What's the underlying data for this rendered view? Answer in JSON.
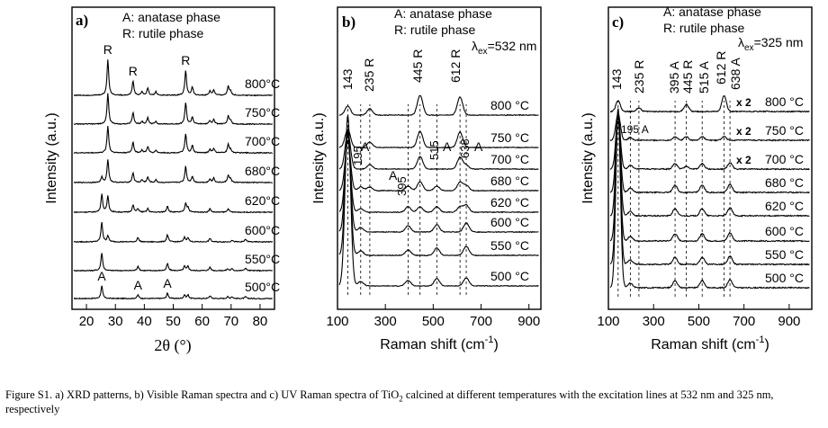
{
  "chart_data": [
    {
      "type": "line",
      "panel": "a)",
      "title": "XRD patterns",
      "legend": [
        "A: anatase phase",
        "R: rutile phase"
      ],
      "xlabel": "2θ (°)",
      "ylabel": "Intensity (a.u.)",
      "xlim": [
        15,
        85
      ],
      "xticks": [
        20,
        30,
        40,
        50,
        60,
        70,
        80
      ],
      "series": [
        {
          "name": "500°C",
          "peaks": [
            {
              "x": 25.3,
              "h": 14
            },
            {
              "x": 37.8,
              "h": 4
            },
            {
              "x": 48.0,
              "h": 6
            },
            {
              "x": 53.9,
              "h": 4
            },
            {
              "x": 55.1,
              "h": 4
            },
            {
              "x": 62.7,
              "h": 3
            },
            {
              "x": 68.8,
              "h": 2
            },
            {
              "x": 70.3,
              "h": 2
            },
            {
              "x": 75.0,
              "h": 2
            }
          ]
        },
        {
          "name": "550°C",
          "peaks": [
            {
              "x": 25.3,
              "h": 20
            },
            {
              "x": 37.8,
              "h": 5
            },
            {
              "x": 48.0,
              "h": 8
            },
            {
              "x": 53.9,
              "h": 5
            },
            {
              "x": 55.1,
              "h": 5
            },
            {
              "x": 62.7,
              "h": 4
            },
            {
              "x": 68.8,
              "h": 2
            },
            {
              "x": 70.3,
              "h": 2
            },
            {
              "x": 75.0,
              "h": 3
            }
          ]
        },
        {
          "name": "600°C",
          "peaks": [
            {
              "x": 25.3,
              "h": 22
            },
            {
              "x": 27.4,
              "h": 7
            },
            {
              "x": 37.8,
              "h": 5
            },
            {
              "x": 48.0,
              "h": 8
            },
            {
              "x": 53.9,
              "h": 5
            },
            {
              "x": 55.1,
              "h": 5
            },
            {
              "x": 62.7,
              "h": 4
            },
            {
              "x": 70.3,
              "h": 2
            },
            {
              "x": 75.0,
              "h": 3
            }
          ]
        },
        {
          "name": "620°C",
          "peaks": [
            {
              "x": 25.3,
              "h": 20
            },
            {
              "x": 27.4,
              "h": 18
            },
            {
              "x": 36.1,
              "h": 8
            },
            {
              "x": 37.8,
              "h": 4
            },
            {
              "x": 41.2,
              "h": 4
            },
            {
              "x": 48.0,
              "h": 7
            },
            {
              "x": 54.3,
              "h": 10
            },
            {
              "x": 55.1,
              "h": 5
            },
            {
              "x": 62.7,
              "h": 4
            },
            {
              "x": 69.0,
              "h": 4
            }
          ]
        },
        {
          "name": "680°C",
          "peaks": [
            {
              "x": 25.3,
              "h": 6
            },
            {
              "x": 27.4,
              "h": 26
            },
            {
              "x": 36.1,
              "h": 11
            },
            {
              "x": 39.2,
              "h": 3
            },
            {
              "x": 41.2,
              "h": 6
            },
            {
              "x": 44.0,
              "h": 3
            },
            {
              "x": 54.3,
              "h": 18
            },
            {
              "x": 56.6,
              "h": 7
            },
            {
              "x": 62.7,
              "h": 4
            },
            {
              "x": 64.0,
              "h": 5
            },
            {
              "x": 69.0,
              "h": 8
            },
            {
              "x": 69.8,
              "h": 4
            }
          ]
        },
        {
          "name": "700°C",
          "peaks": [
            {
              "x": 27.4,
              "h": 30
            },
            {
              "x": 36.1,
              "h": 12
            },
            {
              "x": 39.2,
              "h": 3
            },
            {
              "x": 41.2,
              "h": 7
            },
            {
              "x": 44.0,
              "h": 3
            },
            {
              "x": 54.3,
              "h": 21
            },
            {
              "x": 56.6,
              "h": 8
            },
            {
              "x": 62.7,
              "h": 4
            },
            {
              "x": 64.0,
              "h": 5
            },
            {
              "x": 69.0,
              "h": 9
            },
            {
              "x": 69.8,
              "h": 4
            }
          ]
        },
        {
          "name": "750°C",
          "peaks": [
            {
              "x": 27.4,
              "h": 34
            },
            {
              "x": 36.1,
              "h": 13
            },
            {
              "x": 39.2,
              "h": 3
            },
            {
              "x": 41.2,
              "h": 7
            },
            {
              "x": 44.0,
              "h": 3
            },
            {
              "x": 54.3,
              "h": 24
            },
            {
              "x": 56.6,
              "h": 8
            },
            {
              "x": 62.7,
              "h": 4
            },
            {
              "x": 64.0,
              "h": 5
            },
            {
              "x": 69.0,
              "h": 9
            },
            {
              "x": 69.8,
              "h": 4
            }
          ]
        },
        {
          "name": "800°C",
          "peaks": [
            {
              "x": 27.4,
              "h": 40
            },
            {
              "x": 36.1,
              "h": 16
            },
            {
              "x": 39.2,
              "h": 4
            },
            {
              "x": 41.2,
              "h": 8
            },
            {
              "x": 44.0,
              "h": 4
            },
            {
              "x": 54.3,
              "h": 28
            },
            {
              "x": 56.6,
              "h": 9
            },
            {
              "x": 62.7,
              "h": 5
            },
            {
              "x": 64.0,
              "h": 6
            },
            {
              "x": 69.0,
              "h": 10
            },
            {
              "x": 69.8,
              "h": 5
            }
          ]
        }
      ],
      "annotations": [
        {
          "text": "R",
          "x": 27.4,
          "series": "800°C"
        },
        {
          "text": "R",
          "x": 36.1,
          "series": "800°C"
        },
        {
          "text": "R",
          "x": 54.3,
          "series": "800°C"
        },
        {
          "text": "A",
          "x": 25.3,
          "series": "500°C"
        },
        {
          "text": "A",
          "x": 37.8,
          "series": "500°C"
        },
        {
          "text": "A",
          "x": 48.0,
          "series": "500°C"
        }
      ]
    },
    {
      "type": "line",
      "panel": "b)",
      "title": "Visible Raman spectra",
      "legend": [
        "A: anatase phase",
        "R: rutile phase"
      ],
      "excitation_prefix": "λ",
      "excitation_sub": "ex",
      "excitation_value": "=532 nm",
      "xlabel_main": "Raman shift (cm",
      "xlabel_sup": "-1",
      "xlabel_end": ")",
      "ylabel": "Intensity (a.u.)",
      "xlim": [
        100,
        950
      ],
      "xticks": [
        100,
        300,
        500,
        700,
        900
      ],
      "series": [
        {
          "name": "500 °C",
          "peaks": [
            {
              "x": 143,
              "h": 190
            },
            {
              "x": 197,
              "h": 5
            },
            {
              "x": 395,
              "h": 6
            },
            {
              "x": 515,
              "h": 8
            },
            {
              "x": 638,
              "h": 9
            }
          ]
        },
        {
          "name": "550 °C",
          "peaks": [
            {
              "x": 143,
              "h": 140
            },
            {
              "x": 197,
              "h": 5
            },
            {
              "x": 395,
              "h": 6
            },
            {
              "x": 515,
              "h": 8
            },
            {
              "x": 638,
              "h": 10
            }
          ]
        },
        {
          "name": "600 °C",
          "peaks": [
            {
              "x": 143,
              "h": 110
            },
            {
              "x": 197,
              "h": 5
            },
            {
              "x": 395,
              "h": 7
            },
            {
              "x": 515,
              "h": 8
            },
            {
              "x": 638,
              "h": 10
            }
          ]
        },
        {
          "name": "620 °C",
          "peaks": [
            {
              "x": 143,
              "h": 80
            },
            {
              "x": 197,
              "h": 4
            },
            {
              "x": 395,
              "h": 6
            },
            {
              "x": 445,
              "h": 6
            },
            {
              "x": 515,
              "h": 6
            },
            {
              "x": 612,
              "h": 6
            },
            {
              "x": 638,
              "h": 8
            }
          ]
        },
        {
          "name": "680 °C",
          "peaks": [
            {
              "x": 143,
              "h": 55
            },
            {
              "x": 197,
              "h": 4
            },
            {
              "x": 235,
              "h": 4
            },
            {
              "x": 395,
              "h": 5
            },
            {
              "x": 445,
              "h": 10
            },
            {
              "x": 515,
              "h": 5
            },
            {
              "x": 612,
              "h": 9
            },
            {
              "x": 638,
              "h": 6
            }
          ]
        },
        {
          "name": "700 °C",
          "peaks": [
            {
              "x": 143,
              "h": 40
            },
            {
              "x": 235,
              "h": 5
            },
            {
              "x": 445,
              "h": 14
            },
            {
              "x": 612,
              "h": 13
            },
            {
              "x": 638,
              "h": 4
            }
          ]
        },
        {
          "name": "750 °C",
          "peaks": [
            {
              "x": 143,
              "h": 20
            },
            {
              "x": 235,
              "h": 6
            },
            {
              "x": 445,
              "h": 18
            },
            {
              "x": 612,
              "h": 17
            }
          ]
        },
        {
          "name": "800 °C",
          "peaks": [
            {
              "x": 143,
              "h": 10
            },
            {
              "x": 235,
              "h": 7
            },
            {
              "x": 445,
              "h": 22
            },
            {
              "x": 612,
              "h": 20
            }
          ]
        }
      ],
      "peak_labels": [
        "143",
        "235 R",
        "445 R",
        "612 R",
        "195",
        "A",
        "395",
        "A",
        "515",
        "A",
        "638",
        "A"
      ],
      "reference_lines": [
        143,
        197,
        235,
        395,
        445,
        515,
        612,
        638
      ]
    },
    {
      "type": "line",
      "panel": "c)",
      "title": "UV Raman spectra",
      "legend": [
        "A: anatase phase",
        "R: rutile phase"
      ],
      "excitation_prefix": "λ",
      "excitation_sub": "ex",
      "excitation_value": "=325 nm",
      "xlabel_main": "Raman shift (cm",
      "xlabel_sup": "-1",
      "xlabel_end": ")",
      "ylabel": "Intensity (a.u.)",
      "xlim": [
        100,
        1000
      ],
      "xticks": [
        100,
        300,
        500,
        700,
        900
      ],
      "series": [
        {
          "name": "500 °C",
          "peaks": [
            {
              "x": 143,
              "h": 200
            },
            {
              "x": 197,
              "h": 5
            },
            {
              "x": 395,
              "h": 8
            },
            {
              "x": 515,
              "h": 8
            },
            {
              "x": 638,
              "h": 9
            }
          ]
        },
        {
          "name": "550 °C",
          "peaks": [
            {
              "x": 143,
              "h": 170
            },
            {
              "x": 197,
              "h": 5
            },
            {
              "x": 395,
              "h": 8
            },
            {
              "x": 515,
              "h": 8
            },
            {
              "x": 638,
              "h": 9
            }
          ]
        },
        {
          "name": "600 °C",
          "peaks": [
            {
              "x": 143,
              "h": 140
            },
            {
              "x": 197,
              "h": 5
            },
            {
              "x": 395,
              "h": 8
            },
            {
              "x": 515,
              "h": 8
            },
            {
              "x": 638,
              "h": 9
            }
          ]
        },
        {
          "name": "620 °C",
          "peaks": [
            {
              "x": 143,
              "h": 115
            },
            {
              "x": 197,
              "h": 5
            },
            {
              "x": 395,
              "h": 8
            },
            {
              "x": 515,
              "h": 8
            },
            {
              "x": 638,
              "h": 9
            }
          ]
        },
        {
          "name": "680 °C",
          "peaks": [
            {
              "x": 143,
              "h": 90
            },
            {
              "x": 197,
              "h": 5
            },
            {
              "x": 395,
              "h": 8
            },
            {
              "x": 515,
              "h": 8
            },
            {
              "x": 638,
              "h": 9
            }
          ]
        },
        {
          "name": "700 °C",
          "peaks": [
            {
              "x": 143,
              "h": 60
            },
            {
              "x": 197,
              "h": 4
            },
            {
              "x": 395,
              "h": 6
            },
            {
              "x": 445,
              "h": 3
            },
            {
              "x": 515,
              "h": 6
            },
            {
              "x": 638,
              "h": 7
            }
          ]
        },
        {
          "name": "750 °C",
          "peaks": [
            {
              "x": 143,
              "h": 30
            },
            {
              "x": 197,
              "h": 3
            },
            {
              "x": 395,
              "h": 4
            },
            {
              "x": 445,
              "h": 4
            },
            {
              "x": 515,
              "h": 4
            },
            {
              "x": 612,
              "h": 4
            }
          ]
        },
        {
          "name": "800 °C",
          "peaks": [
            {
              "x": 143,
              "h": 12
            },
            {
              "x": 235,
              "h": 4
            },
            {
              "x": 445,
              "h": 8
            },
            {
              "x": 612,
              "h": 18
            }
          ]
        }
      ],
      "multipliers": [
        {
          "series": "800 °C",
          "text": "x 2"
        },
        {
          "series": "750 °C",
          "text": "x 2"
        },
        {
          "series": "700 °C",
          "text": "x 2"
        }
      ],
      "peak_labels": [
        "143",
        "235 R",
        "395 A",
        "445 R",
        "515 A",
        "612 R",
        "638 A",
        "195 A"
      ],
      "reference_lines": [
        143,
        197,
        235,
        395,
        445,
        515,
        612,
        638
      ]
    }
  ],
  "caption": {
    "prefix": "Figure S1. a) XRD patterns, b) Visible Raman spectra and c) UV Raman spectra of TiO",
    "sub": "2",
    "suffix": " calcined at different temperatures with the excitation lines at 532 nm and 325 nm, respectively"
  }
}
